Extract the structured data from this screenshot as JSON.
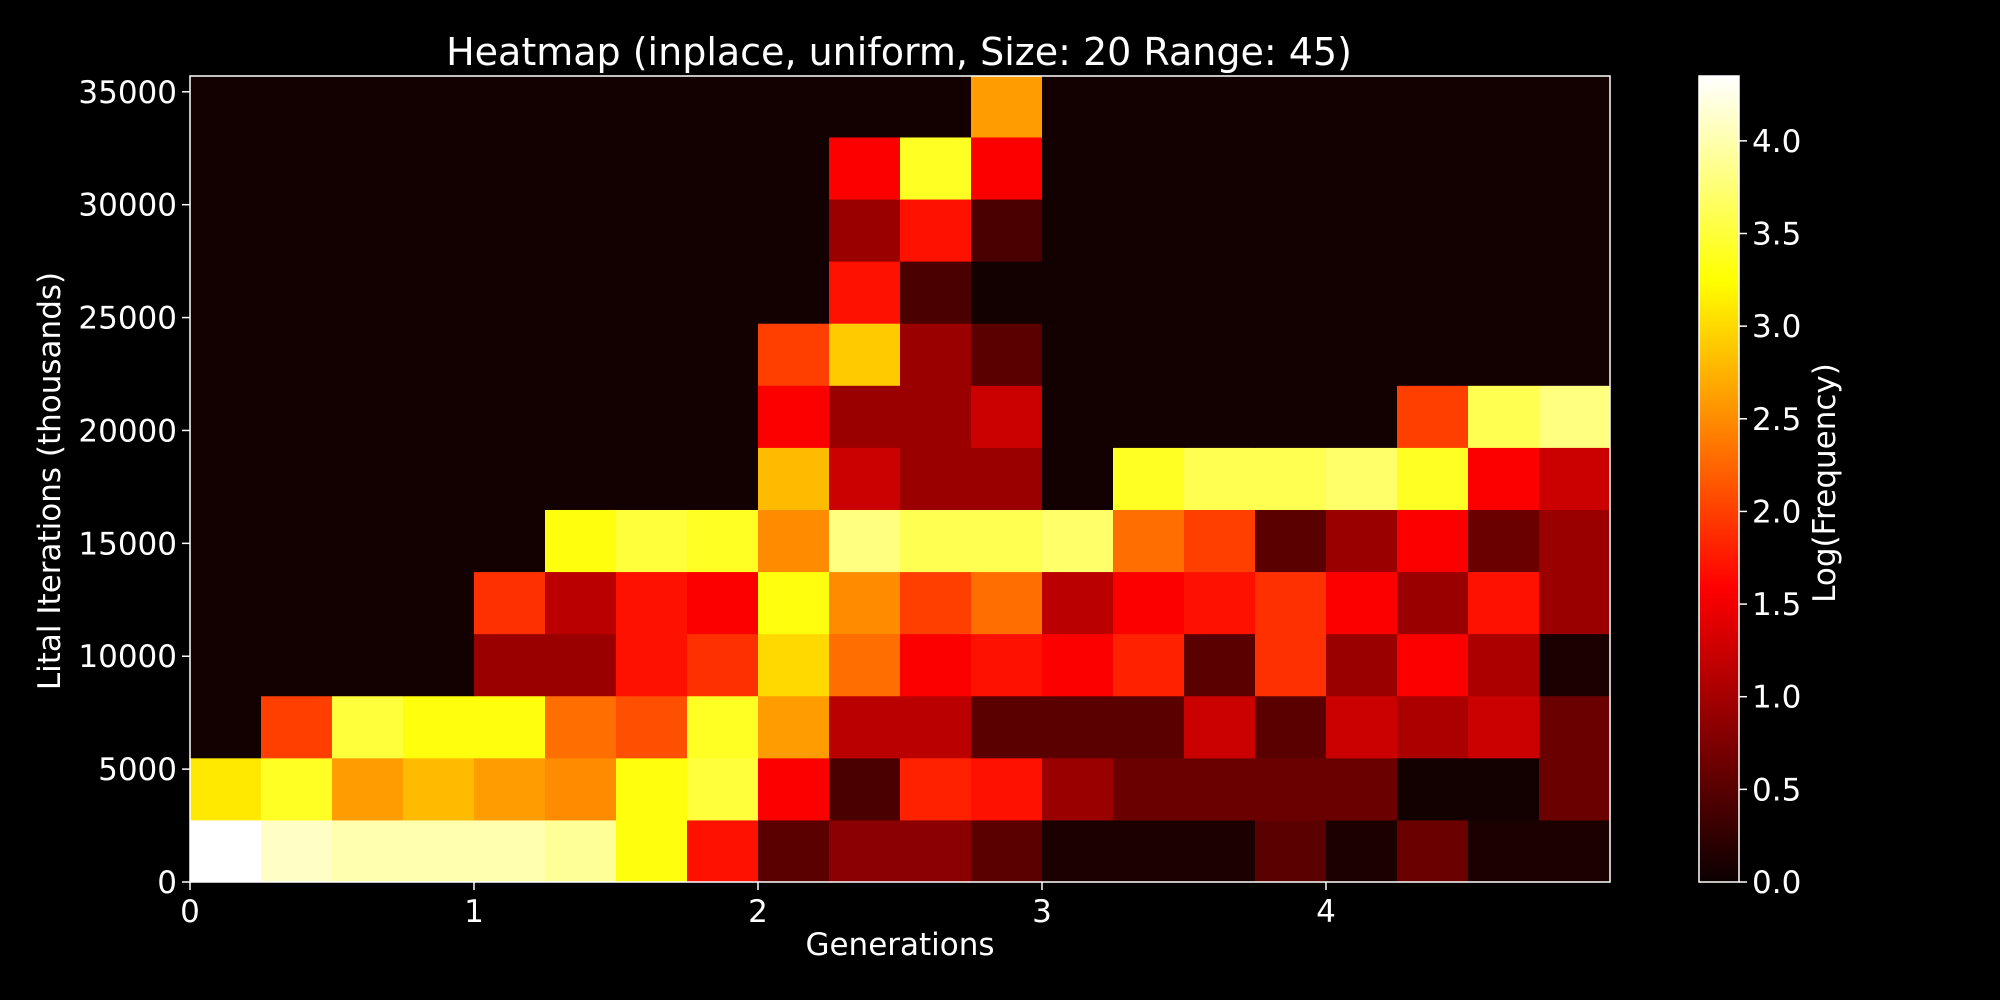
{
  "chart_data": {
    "type": "heatmap",
    "title": "Heatmap (inplace, uniform, Size: 20 Range: 45)",
    "xlabel": "Generations",
    "ylabel": "Lital Iterations (thousands)",
    "colorbar_label": "Log(Frequency)",
    "colormap": "hot",
    "background": "#000000",
    "xlim": [
      0,
      5
    ],
    "ylim": [
      0,
      35700
    ],
    "x_ticks": [
      "0",
      "1",
      "2",
      "3",
      "4"
    ],
    "y_ticks": [
      "0",
      "5000",
      "10000",
      "15000",
      "20000",
      "25000",
      "30000",
      "35000"
    ],
    "colorbar_range": [
      0,
      4.35
    ],
    "colorbar_ticks": [
      "0.0",
      "0.5",
      "1.0",
      "1.5",
      "2.0",
      "2.5",
      "3.0",
      "3.5",
      "4.0"
    ],
    "x_edges": [
      0,
      0.25,
      0.5,
      0.75,
      1.0,
      1.25,
      1.5,
      1.75,
      2.0,
      2.25,
      2.5,
      2.75,
      3.0,
      3.25,
      3.5,
      3.75,
      4.0,
      4.25,
      4.5,
      4.75,
      5.0
    ],
    "y_edges": [
      0,
      2750,
      5500,
      8250,
      11000,
      13750,
      16500,
      19250,
      22000,
      24750,
      27500,
      30250,
      33000,
      35700
    ],
    "values": [
      [
        4.35,
        4.1,
        4.0,
        4.0,
        4.0,
        3.9,
        3.3,
        1.7,
        0.5,
        0.8,
        0.8,
        0.5,
        0.1,
        0.1,
        0.1,
        0.5,
        0.1,
        0.6,
        0.1,
        0.1
      ],
      [
        3.1,
        3.4,
        2.6,
        2.8,
        2.6,
        2.5,
        3.3,
        3.5,
        1.5,
        0.4,
        1.8,
        1.7,
        0.9,
        0.6,
        0.6,
        0.6,
        0.6,
        0.05,
        0.05,
        0.6
      ],
      [
        0.05,
        2.0,
        3.5,
        3.3,
        3.3,
        2.3,
        2.1,
        3.4,
        2.6,
        1.1,
        1.1,
        0.5,
        0.5,
        0.5,
        1.2,
        0.5,
        1.2,
        1.0,
        1.2,
        0.6
      ],
      [
        0.05,
        0.05,
        0.05,
        0.05,
        0.9,
        0.9,
        1.7,
        1.9,
        3.0,
        2.3,
        1.5,
        1.7,
        1.5,
        1.8,
        0.5,
        1.9,
        0.9,
        1.5,
        1.0,
        0.1
      ],
      [
        0.05,
        0.05,
        0.05,
        0.05,
        1.9,
        1.1,
        1.7,
        1.5,
        3.3,
        2.5,
        2.0,
        2.3,
        1.1,
        1.5,
        1.7,
        1.9,
        1.5,
        0.9,
        1.7,
        0.9
      ],
      [
        0.05,
        0.05,
        0.05,
        0.05,
        0.05,
        3.3,
        3.5,
        3.4,
        2.5,
        3.8,
        3.6,
        3.6,
        3.7,
        2.3,
        2.0,
        0.5,
        0.9,
        1.5,
        0.6,
        0.9
      ],
      [
        0.05,
        0.05,
        0.05,
        0.05,
        0.05,
        0.05,
        0.05,
        0.05,
        2.8,
        1.2,
        0.9,
        0.9,
        0.05,
        3.4,
        3.6,
        3.6,
        3.7,
        3.4,
        1.5,
        1.2
      ],
      [
        0.05,
        0.05,
        0.05,
        0.05,
        0.05,
        0.05,
        0.05,
        0.05,
        1.5,
        0.9,
        0.9,
        1.2,
        0.05,
        0.05,
        0.05,
        0.05,
        0.05,
        2.0,
        3.6,
        3.8
      ],
      [
        0.05,
        0.05,
        0.05,
        0.05,
        0.05,
        0.05,
        0.05,
        0.05,
        2.0,
        2.9,
        0.9,
        0.5,
        0.05,
        0.05,
        0.05,
        0.05,
        0.05,
        0.05,
        0.05,
        0.05
      ],
      [
        0.05,
        0.05,
        0.05,
        0.05,
        0.05,
        0.05,
        0.05,
        0.05,
        0.05,
        1.7,
        0.4,
        0.05,
        0.05,
        0.05,
        0.05,
        0.05,
        0.05,
        0.05,
        0.05,
        0.05
      ],
      [
        0.05,
        0.05,
        0.05,
        0.05,
        0.05,
        0.05,
        0.05,
        0.05,
        0.05,
        0.9,
        1.7,
        0.4,
        0.05,
        0.05,
        0.05,
        0.05,
        0.05,
        0.05,
        0.05,
        0.05
      ],
      [
        0.05,
        0.05,
        0.05,
        0.05,
        0.05,
        0.05,
        0.05,
        0.05,
        0.05,
        1.5,
        3.4,
        1.5,
        0.05,
        0.05,
        0.05,
        0.05,
        0.05,
        0.05,
        0.05,
        0.05
      ],
      [
        0.05,
        0.05,
        0.05,
        0.05,
        0.05,
        0.05,
        0.05,
        0.05,
        0.05,
        0.05,
        0.05,
        2.6,
        0.05,
        0.05,
        0.05,
        0.05,
        0.05,
        0.05,
        0.05,
        0.05
      ]
    ]
  }
}
